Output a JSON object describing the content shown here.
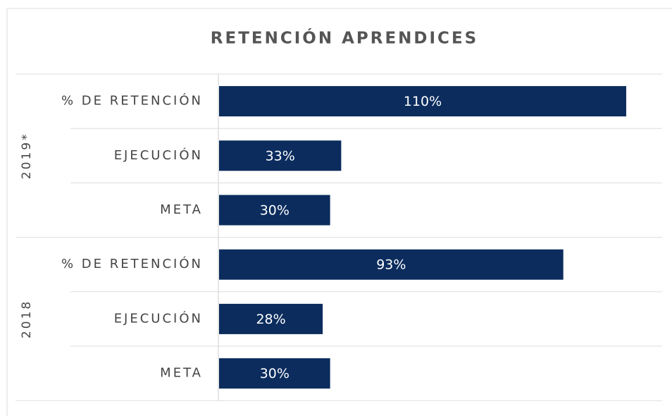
{
  "chart_data": {
    "type": "bar",
    "title": "RETENCIÓN APRENDICES",
    "color": "#0b2c5d",
    "groups": [
      {
        "name": "2019*",
        "categories": [
          "% DE RETENCIÓN",
          "EJECUCIÓN",
          "META"
        ],
        "values": [
          110,
          33,
          30
        ],
        "value_labels": [
          "110%",
          "33%",
          "30%"
        ]
      },
      {
        "name": "2018",
        "categories": [
          "% DE RETENCIÓN",
          "EJECUCIÓN",
          "META"
        ],
        "values": [
          93,
          28,
          30
        ],
        "value_labels": [
          "93%",
          "28%",
          "30%"
        ]
      }
    ]
  }
}
